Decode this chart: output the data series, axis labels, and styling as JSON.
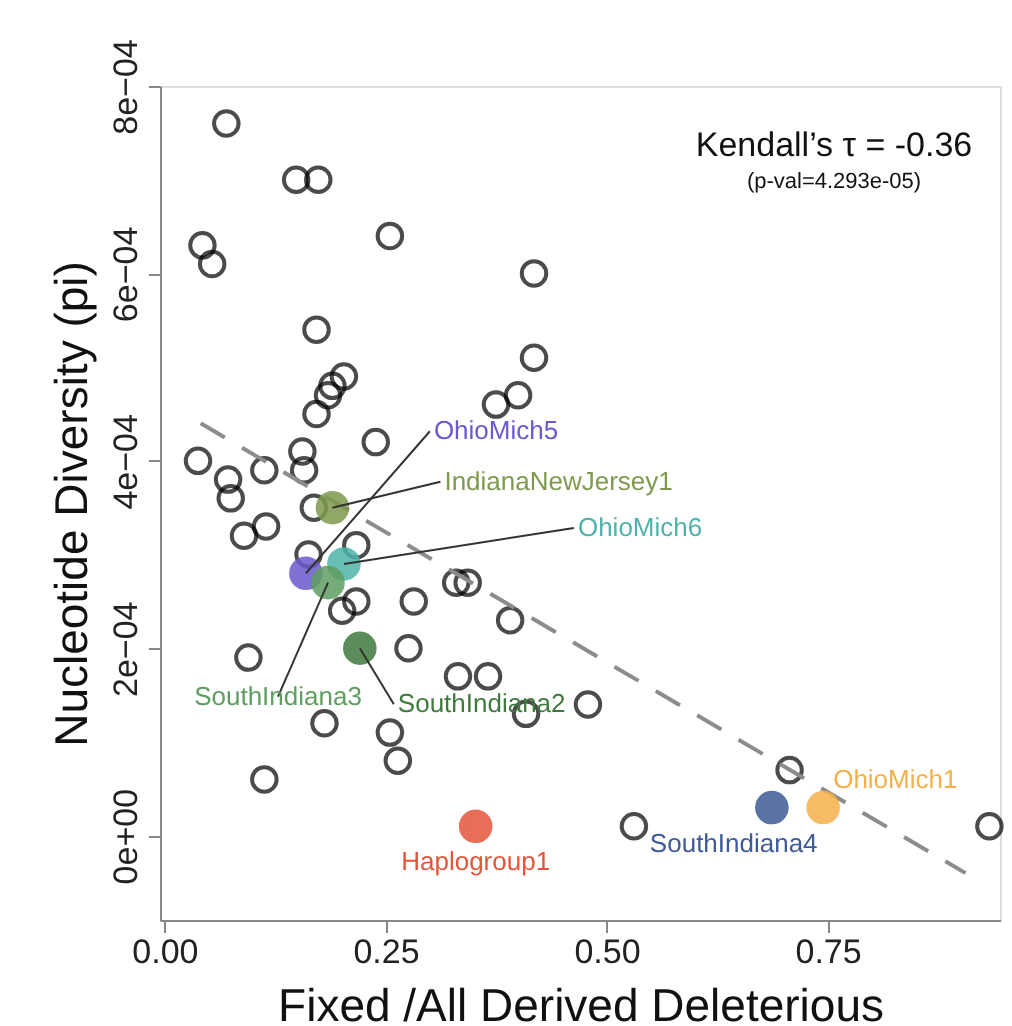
{
  "chart_data": {
    "type": "scatter",
    "xlabel": "Fixed /All Derived Deleterious",
    "ylabel": "Nucleotide Diversity (pi)",
    "annotations": [
      "Kendall’s τ = -0.36",
      "(p-val=4.293e-05)"
    ],
    "xlim": [
      -0.005,
      0.945
    ],
    "ylim": [
      -9e-05,
      0.0008
    ],
    "xticks": [
      {
        "value": 0,
        "label": "0.00"
      },
      {
        "value": 0.25,
        "label": "0.25"
      },
      {
        "value": 0.5,
        "label": "0.50"
      },
      {
        "value": 0.75,
        "label": "0.75"
      }
    ],
    "yticks": [
      {
        "value": 0,
        "label": "0e+00"
      },
      {
        "value": 0.0002,
        "label": "2e−04"
      },
      {
        "value": 0.0004,
        "label": "4e−04"
      },
      {
        "value": 0.0006,
        "label": "6e−04"
      },
      {
        "value": 0.0008,
        "label": "8e−04"
      }
    ],
    "grid": false,
    "marker": "circle",
    "series": [
      {
        "color": "#000000",
        "x": [
          0.07,
          0.149,
          0.174,
          0.255,
          0.043,
          0.054,
          0.172,
          0.203,
          0.19,
          0.185,
          0.172,
          0.375,
          0.4,
          0.418,
          0.418,
          0.038,
          0.156,
          0.158,
          0.239,
          0.072,
          0.113,
          0.075,
          0.09,
          0.115,
          0.169,
          0.163,
          0.217,
          0.201,
          0.217,
          0.282,
          0.33,
          0.343,
          0.391,
          0.276,
          0.095,
          0.332,
          0.366,
          0.181,
          0.255,
          0.264,
          0.113,
          0.409,
          0.479,
          0.707,
          0.531,
          0.933
        ],
        "values": [
          0.00076,
          0.0007,
          0.0007,
          0.00064,
          0.00063,
          0.00061,
          0.00054,
          0.00049,
          0.00048,
          0.00047,
          0.00045,
          0.00046,
          0.00047,
          0.0006,
          0.00051,
          0.0004,
          0.00041,
          0.00039,
          0.00042,
          0.00038,
          0.00039,
          0.00036,
          0.00032,
          0.00033,
          0.00035,
          0.0003,
          0.00031,
          0.00024,
          0.00025,
          0.00025,
          0.00027,
          0.00027,
          0.00023,
          0.0002,
          0.00019,
          0.00017,
          0.00017,
          0.00012,
          0.00011,
          8e-05,
          6e-05,
          0.00013,
          0.00014,
          7e-05,
          1e-05,
          1e-05
        ]
      },
      {
        "type": "line",
        "marker": "none",
        "line_style": "dashed",
        "color": "#8c8c8c",
        "x": [
          0.041,
          0.906
        ],
        "values": [
          0.00044,
          -4e-05
        ]
      },
      {
        "name": "IndianaNewJersey1",
        "color": "#7f9a4e",
        "x": [
          0.19
        ],
        "values": [
          0.00035
        ]
      },
      {
        "name": "OhioMich5",
        "color": "#6a5acd",
        "x": [
          0.16
        ],
        "values": [
          0.00028
        ]
      },
      {
        "name": "OhioMich6",
        "color": "#4fb3aa",
        "x": [
          0.203
        ],
        "values": [
          0.00029
        ]
      },
      {
        "name": "SouthIndiana3",
        "color": "#5f9e62",
        "x": [
          0.185
        ],
        "values": [
          0.00027
        ]
      },
      {
        "name": "SouthIndiana2",
        "color": "#3f7a3f",
        "x": [
          0.221
        ],
        "values": [
          0.0002
        ]
      },
      {
        "name": "Haplogroup1",
        "color": "#e5553b",
        "x": [
          0.352
        ],
        "values": [
          1e-05
        ]
      },
      {
        "name": "SouthIndiana4",
        "color": "#3f5a96",
        "x": [
          0.687
        ],
        "values": [
          3e-05
        ]
      },
      {
        "name": "OhioMich1",
        "color": "#f5b04a",
        "x": [
          0.745
        ],
        "values": [
          3e-05
        ]
      }
    ]
  }
}
